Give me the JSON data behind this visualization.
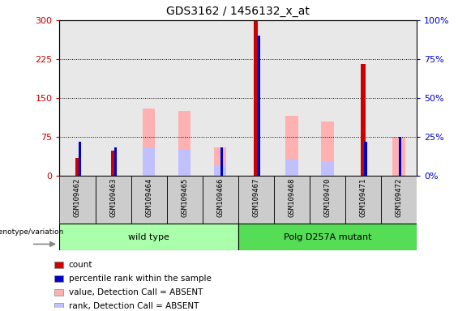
{
  "title": "GDS3162 / 1456132_x_at",
  "samples": [
    "GSM109462",
    "GSM109463",
    "GSM109464",
    "GSM109465",
    "GSM109466",
    "GSM109467",
    "GSM109468",
    "GSM109470",
    "GSM109471",
    "GSM109472"
  ],
  "count_values": [
    35,
    48,
    0,
    0,
    0,
    300,
    0,
    0,
    215,
    0
  ],
  "percentile_values": [
    22,
    18,
    0,
    0,
    0,
    90,
    0,
    0,
    22,
    0
  ],
  "absent_value_values": [
    0,
    0,
    130,
    125,
    55,
    0,
    115,
    105,
    0,
    75
  ],
  "absent_rank_values": [
    0,
    0,
    55,
    50,
    18,
    0,
    32,
    28,
    0,
    0
  ],
  "absent_percentile_values": [
    0,
    0,
    0,
    0,
    18,
    0,
    0,
    0,
    0,
    25
  ],
  "group_labels": [
    "wild type",
    "Polg D257A mutant"
  ],
  "wt_indices": [
    0,
    1,
    2,
    3,
    4
  ],
  "mutant_indices": [
    5,
    6,
    7,
    8,
    9
  ],
  "ylim_left": [
    0,
    300
  ],
  "ylim_right": [
    0,
    100
  ],
  "yticks_left": [
    0,
    75,
    150,
    225,
    300
  ],
  "yticks_right": [
    0,
    25,
    50,
    75,
    100
  ],
  "color_count": "#cc0000",
  "color_percentile": "#0000cc",
  "color_absent_value": "#ffb0b0",
  "color_absent_rank": "#c0c0ff",
  "color_wt_bg": "#aaffaa",
  "color_mutant_bg": "#55dd55",
  "color_sample_bg": "#cccccc",
  "legend_labels": [
    "count",
    "percentile rank within the sample",
    "value, Detection Call = ABSENT",
    "rank, Detection Call = ABSENT"
  ],
  "wide_bar_width": 0.35,
  "narrow_bar_width": 0.12,
  "tiny_bar_width": 0.08
}
